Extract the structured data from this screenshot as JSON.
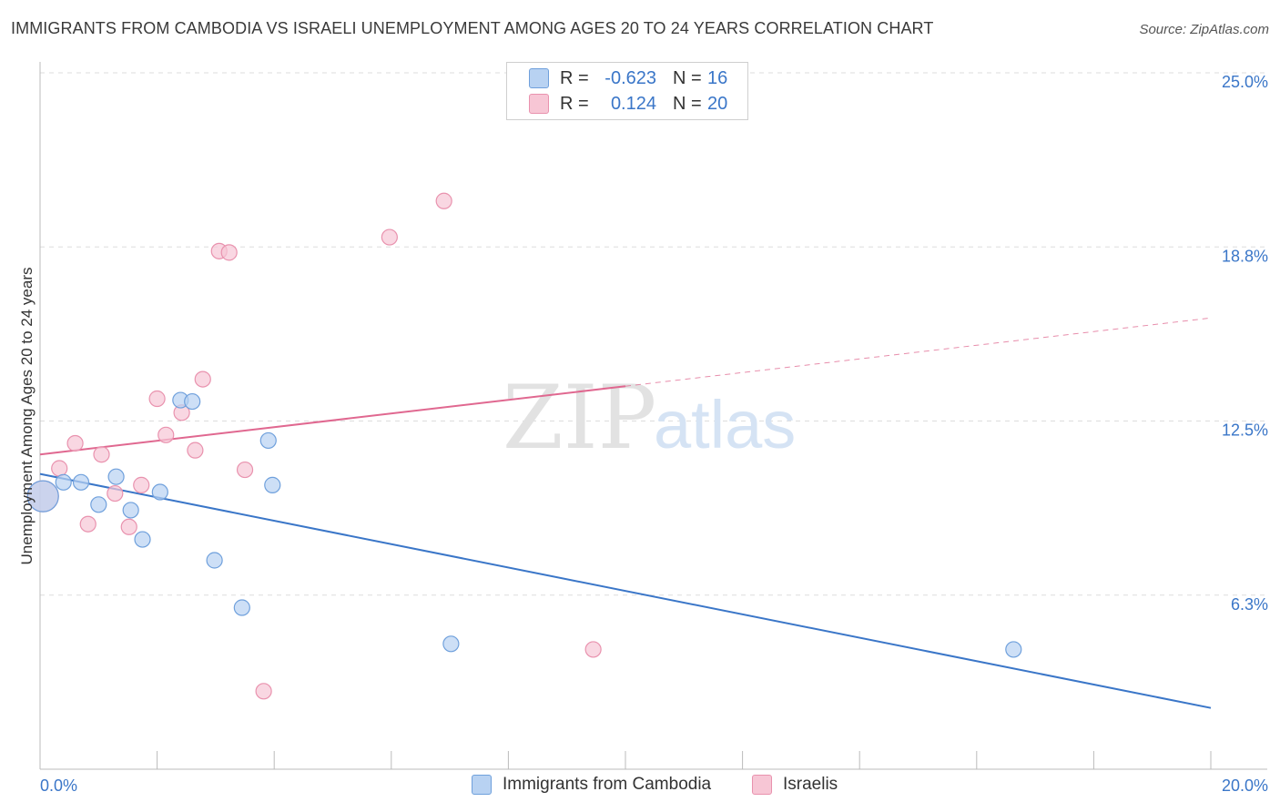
{
  "header": {
    "title": "IMMIGRANTS FROM CAMBODIA VS ISRAELI UNEMPLOYMENT AMONG AGES 20 TO 24 YEARS CORRELATION CHART",
    "source": "Source: ZipAtlas.com"
  },
  "legend": {
    "rows": [
      {
        "r_label": "R =",
        "r_value": "-0.623",
        "n_label": "N =",
        "n_value": "16"
      },
      {
        "r_label": "R =",
        "r_value": "0.124",
        "n_label": "N =",
        "n_value": "20"
      }
    ]
  },
  "watermark": {
    "zip": "ZIP",
    "atlas": "atlas"
  },
  "colors": {
    "cambodia_fill": "#b8d2f2",
    "cambodia_stroke": "#6fa0dc",
    "cambodia_line": "#3a76c8",
    "israeli_fill": "#f7c6d5",
    "israeli_stroke": "#e992ae",
    "israeli_line": "#e06890",
    "tick_label": "#3a76c8",
    "grid": "#dddddd"
  },
  "chart_data": {
    "type": "scatter",
    "title": "IMMIGRANTS FROM CAMBODIA VS ISRAELI UNEMPLOYMENT AMONG AGES 20 TO 24 YEARS CORRELATION CHART",
    "xlabel": "",
    "ylabel": "Unemployment Among Ages 20 to 24 years",
    "xlim": [
      0,
      20
    ],
    "ylim": [
      0,
      25
    ],
    "x_tick_labels": [
      "0.0%",
      "20.0%"
    ],
    "y_ticks": [
      6.25,
      12.5,
      18.75,
      25
    ],
    "y_tick_labels": [
      "6.3%",
      "12.5%",
      "18.8%",
      "25.0%"
    ],
    "grid": true,
    "legend_position": "top-center",
    "series": [
      {
        "name": "Immigrants from Cambodia",
        "r": -0.623,
        "n": 16,
        "points": [
          {
            "x": 0.05,
            "y": 9.8,
            "size": "large"
          },
          {
            "x": 0.4,
            "y": 10.3
          },
          {
            "x": 0.7,
            "y": 10.3
          },
          {
            "x": 1.0,
            "y": 9.5
          },
          {
            "x": 1.3,
            "y": 10.5
          },
          {
            "x": 1.55,
            "y": 9.3
          },
          {
            "x": 1.75,
            "y": 8.25
          },
          {
            "x": 2.05,
            "y": 9.95
          },
          {
            "x": 2.4,
            "y": 13.25
          },
          {
            "x": 2.6,
            "y": 13.2
          },
          {
            "x": 2.98,
            "y": 7.5
          },
          {
            "x": 3.45,
            "y": 5.8
          },
          {
            "x": 3.9,
            "y": 11.8
          },
          {
            "x": 3.97,
            "y": 10.2
          },
          {
            "x": 7.02,
            "y": 4.5
          },
          {
            "x": 16.63,
            "y": 4.3
          }
        ],
        "trend": {
          "x0": 0,
          "y0": 10.6,
          "x1": 20,
          "y1": 2.2,
          "solid_until_x": 20
        }
      },
      {
        "name": "Israelis",
        "r": 0.124,
        "n": 20,
        "points": [
          {
            "x": 0.05,
            "y": 9.8,
            "size": "large"
          },
          {
            "x": 0.33,
            "y": 10.8
          },
          {
            "x": 0.6,
            "y": 11.7
          },
          {
            "x": 0.82,
            "y": 8.8
          },
          {
            "x": 1.05,
            "y": 11.3
          },
          {
            "x": 1.28,
            "y": 9.9
          },
          {
            "x": 1.52,
            "y": 8.7
          },
          {
            "x": 1.73,
            "y": 10.2
          },
          {
            "x": 2.0,
            "y": 13.3
          },
          {
            "x": 2.15,
            "y": 12.0
          },
          {
            "x": 2.42,
            "y": 12.8
          },
          {
            "x": 2.65,
            "y": 11.45
          },
          {
            "x": 2.78,
            "y": 14.0
          },
          {
            "x": 3.06,
            "y": 18.6
          },
          {
            "x": 3.23,
            "y": 18.55
          },
          {
            "x": 3.5,
            "y": 10.75
          },
          {
            "x": 3.82,
            "y": 2.8
          },
          {
            "x": 5.97,
            "y": 19.1
          },
          {
            "x": 6.9,
            "y": 20.4
          },
          {
            "x": 9.45,
            "y": 4.3
          }
        ],
        "trend": {
          "x0": 0,
          "y0": 11.3,
          "x1": 20,
          "y1": 16.2,
          "solid_until_x": 10
        }
      }
    ]
  }
}
